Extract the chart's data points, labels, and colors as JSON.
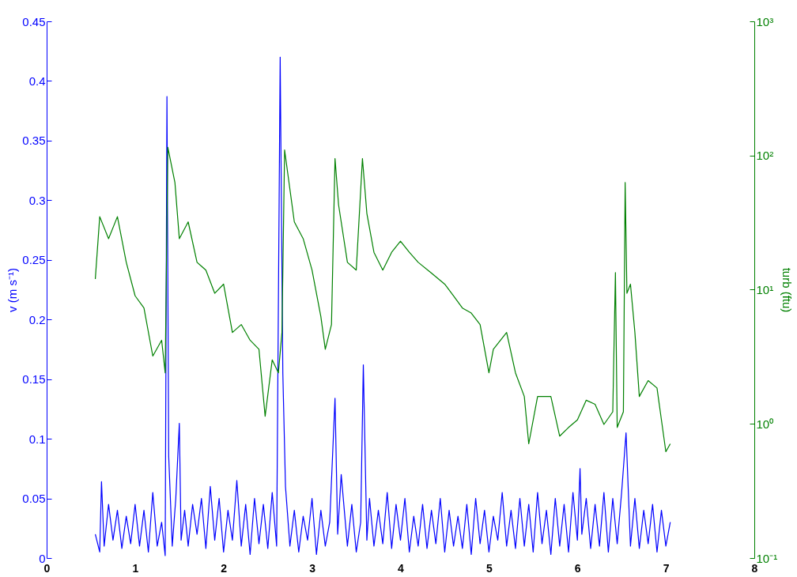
{
  "chart_data": {
    "type": "line",
    "ylabel": "v (m s⁻¹)",
    "y2label": "turb (ftu)",
    "xlim": [
      0,
      8
    ],
    "xticks": [
      0,
      1,
      2,
      3,
      4,
      5,
      6,
      7,
      8
    ],
    "ylim": [
      0,
      0.45
    ],
    "yticks": [
      0,
      0.05,
      0.1,
      0.15,
      0.2,
      0.25,
      0.3,
      0.35,
      0.4,
      0.45
    ],
    "y2lim": [
      0.1,
      1000
    ],
    "y2ticks": [
      {
        "value": 0.1,
        "label": "10⁻¹"
      },
      {
        "value": 1,
        "label": "10⁰"
      },
      {
        "value": 10,
        "label": "10¹"
      },
      {
        "value": 100,
        "label": "10²"
      },
      {
        "value": 1000,
        "label": "10³"
      }
    ],
    "log": "y2",
    "grid": false,
    "series": [
      {
        "color": "#0000ff",
        "x": [
          0.55,
          0.6,
          0.62,
          0.65,
          0.7,
          0.75,
          0.8,
          0.85,
          0.9,
          0.95,
          1.0,
          1.05,
          1.1,
          1.15,
          1.2,
          1.25,
          1.3,
          1.34,
          1.36,
          1.38,
          1.42,
          1.46,
          1.5,
          1.52,
          1.56,
          1.6,
          1.65,
          1.7,
          1.75,
          1.8,
          1.85,
          1.9,
          1.95,
          2.0,
          2.05,
          2.1,
          2.15,
          2.2,
          2.25,
          2.3,
          2.35,
          2.4,
          2.45,
          2.5,
          2.55,
          2.6,
          2.64,
          2.67,
          2.7,
          2.75,
          2.8,
          2.85,
          2.9,
          2.95,
          3.0,
          3.05,
          3.1,
          3.15,
          3.2,
          3.26,
          3.29,
          3.33,
          3.4,
          3.45,
          3.5,
          3.55,
          3.58,
          3.62,
          3.65,
          3.7,
          3.75,
          3.8,
          3.85,
          3.9,
          3.95,
          4.0,
          4.05,
          4.1,
          4.15,
          4.2,
          4.25,
          4.3,
          4.35,
          4.4,
          4.45,
          4.5,
          4.55,
          4.6,
          4.65,
          4.7,
          4.75,
          4.8,
          4.85,
          4.9,
          4.95,
          5.0,
          5.05,
          5.1,
          5.15,
          5.2,
          5.25,
          5.3,
          5.35,
          5.4,
          5.45,
          5.5,
          5.55,
          5.6,
          5.65,
          5.7,
          5.75,
          5.8,
          5.85,
          5.9,
          5.95,
          6.0,
          6.03,
          6.05,
          6.1,
          6.15,
          6.2,
          6.25,
          6.3,
          6.35,
          6.4,
          6.45,
          6.5,
          6.55,
          6.6,
          6.65,
          6.7,
          6.75,
          6.8,
          6.85,
          6.9,
          6.95,
          7.0,
          7.05
        ],
        "values": [
          0.02,
          0.005,
          0.064,
          0.01,
          0.045,
          0.015,
          0.04,
          0.008,
          0.035,
          0.012,
          0.045,
          0.01,
          0.04,
          0.005,
          0.055,
          0.01,
          0.03,
          0.002,
          0.387,
          0.085,
          0.01,
          0.05,
          0.113,
          0.015,
          0.04,
          0.01,
          0.045,
          0.02,
          0.05,
          0.008,
          0.06,
          0.015,
          0.05,
          0.005,
          0.04,
          0.015,
          0.065,
          0.01,
          0.045,
          0.003,
          0.05,
          0.012,
          0.045,
          0.008,
          0.055,
          0.01,
          0.42,
          0.155,
          0.06,
          0.01,
          0.04,
          0.005,
          0.035,
          0.015,
          0.05,
          0.003,
          0.04,
          0.01,
          0.03,
          0.134,
          0.02,
          0.07,
          0.01,
          0.045,
          0.005,
          0.03,
          0.162,
          0.015,
          0.05,
          0.01,
          0.04,
          0.012,
          0.055,
          0.008,
          0.045,
          0.015,
          0.05,
          0.005,
          0.035,
          0.01,
          0.045,
          0.008,
          0.04,
          0.012,
          0.05,
          0.005,
          0.04,
          0.01,
          0.035,
          0.008,
          0.045,
          0.003,
          0.05,
          0.012,
          0.04,
          0.005,
          0.035,
          0.015,
          0.055,
          0.01,
          0.04,
          0.008,
          0.05,
          0.01,
          0.045,
          0.005,
          0.055,
          0.012,
          0.04,
          0.003,
          0.05,
          0.01,
          0.045,
          0.005,
          0.055,
          0.015,
          0.075,
          0.02,
          0.05,
          0.008,
          0.045,
          0.01,
          0.055,
          0.005,
          0.05,
          0.012,
          0.055,
          0.105,
          0.01,
          0.05,
          0.008,
          0.04,
          0.012,
          0.045,
          0.005,
          0.04,
          0.01,
          0.03
        ]
      },
      {
        "color": "#008000",
        "axis": "y2",
        "x": [
          0.55,
          0.6,
          0.7,
          0.8,
          0.9,
          1.0,
          1.1,
          1.2,
          1.3,
          1.34,
          1.37,
          1.45,
          1.5,
          1.6,
          1.7,
          1.8,
          1.9,
          2.0,
          2.1,
          2.2,
          2.3,
          2.4,
          2.47,
          2.55,
          2.62,
          2.66,
          2.69,
          2.8,
          2.9,
          3.0,
          3.1,
          3.15,
          3.22,
          3.26,
          3.3,
          3.4,
          3.5,
          3.57,
          3.62,
          3.7,
          3.8,
          3.9,
          4.0,
          4.1,
          4.2,
          4.35,
          4.5,
          4.6,
          4.7,
          4.8,
          4.9,
          5.0,
          5.05,
          5.2,
          5.3,
          5.4,
          5.45,
          5.55,
          5.7,
          5.8,
          5.9,
          6.0,
          6.1,
          6.2,
          6.3,
          6.4,
          6.43,
          6.45,
          6.52,
          6.54,
          6.56,
          6.6,
          6.65,
          6.7,
          6.8,
          6.9,
          6.95,
          7.0,
          7.05
        ],
        "values": [
          12,
          35,
          24,
          35,
          16,
          9,
          7.3,
          3.2,
          4.2,
          2.4,
          115,
          63,
          24,
          32,
          16,
          14,
          9.4,
          11,
          4.8,
          5.5,
          4.2,
          3.6,
          1.14,
          3,
          2.4,
          4.8,
          110,
          32,
          24,
          14,
          6.3,
          3.6,
          5.5,
          95,
          43,
          16,
          14,
          95,
          37,
          19,
          14,
          19,
          23,
          19,
          16,
          13.3,
          11,
          9,
          7.3,
          6.7,
          5.5,
          2.4,
          3.6,
          4.8,
          2.4,
          1.6,
          0.71,
          1.6,
          1.6,
          0.81,
          0.94,
          1.07,
          1.5,
          1.4,
          0.99,
          1.23,
          13.4,
          0.94,
          1.23,
          63,
          9.4,
          11,
          4.8,
          1.6,
          2.1,
          1.85,
          1.07,
          0.62,
          0.71
        ]
      }
    ]
  }
}
